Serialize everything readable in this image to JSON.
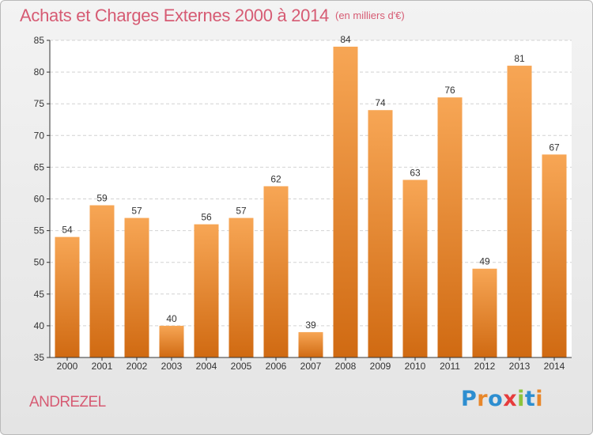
{
  "header": {
    "title": "Achats et Charges Externes 2000 à 2014",
    "unit": "(en milliers d'€)"
  },
  "footer": {
    "commune": "ANDREZEL",
    "logo_letters": [
      {
        "ch": "P",
        "color": "#2d8ed0"
      },
      {
        "ch": "r",
        "color": "#e8872a"
      },
      {
        "ch": "o",
        "color": "#2d8ed0"
      },
      {
        "ch": "x",
        "color": "#e63c3c"
      },
      {
        "ch": "i",
        "color": "#8cc43d"
      },
      {
        "ch": "t",
        "color": "#2d8ed0"
      },
      {
        "ch": "i",
        "color": "#e8872a"
      }
    ]
  },
  "colors": {
    "bar_top": "#f7a655",
    "bar_bottom": "#d06a12",
    "axis": "#333333",
    "grid": "#d2d2d2",
    "title": "#d65b73"
  },
  "chart_data": {
    "type": "bar",
    "categories": [
      "2000",
      "2001",
      "2002",
      "2003",
      "2004",
      "2005",
      "2006",
      "2007",
      "2008",
      "2009",
      "2010",
      "2011",
      "2012",
      "2013",
      "2014"
    ],
    "values": [
      54,
      59,
      57,
      40,
      56,
      57,
      62,
      39,
      84,
      74,
      63,
      76,
      49,
      81,
      67
    ],
    "ylim": [
      35,
      85
    ],
    "yticks": [
      35,
      40,
      45,
      50,
      55,
      60,
      65,
      70,
      75,
      80,
      85
    ],
    "grid": "horizontal dashed",
    "data_labels": true
  }
}
